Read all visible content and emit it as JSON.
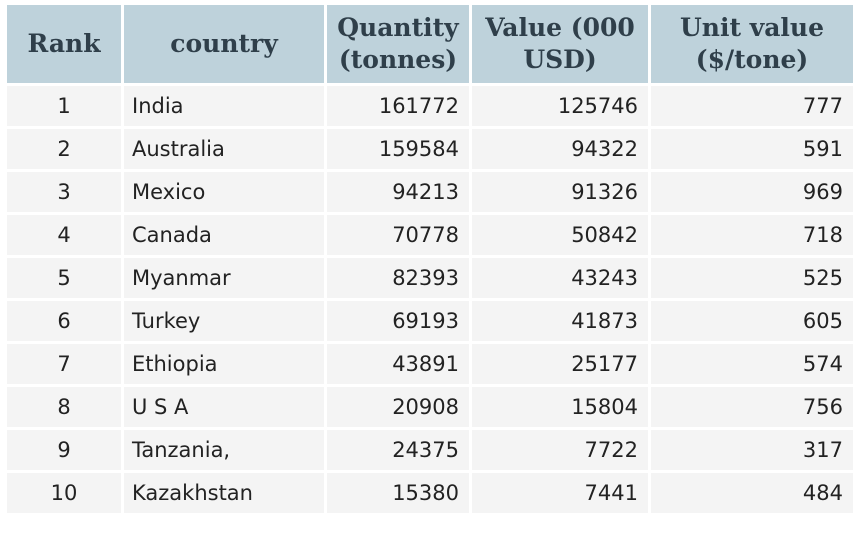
{
  "table": {
    "headers": [
      "Rank",
      "country",
      "Quantity (tonnes)",
      "Value (000 USD)",
      "Unit value ($/tone)"
    ],
    "rows": [
      [
        "1",
        "India",
        "161772",
        "125746",
        "777"
      ],
      [
        "2",
        "Australia",
        "159584",
        "94322",
        "591"
      ],
      [
        "3",
        "Mexico",
        "94213",
        "91326",
        "969"
      ],
      [
        "4",
        "Canada",
        "70778",
        "50842",
        "718"
      ],
      [
        "5",
        "Myanmar",
        "82393",
        "43243",
        "525"
      ],
      [
        "6",
        "Turkey",
        "69193",
        "41873",
        "605"
      ],
      [
        "7",
        "Ethiopia",
        "43891",
        "25177",
        "574"
      ],
      [
        "8",
        "U S A",
        "20908",
        "15804",
        "756"
      ],
      [
        "9",
        "Tanzania,",
        "24375",
        "7722",
        "317"
      ],
      [
        "10",
        "Kazakhstan",
        "15380",
        "7441",
        "484"
      ]
    ]
  }
}
